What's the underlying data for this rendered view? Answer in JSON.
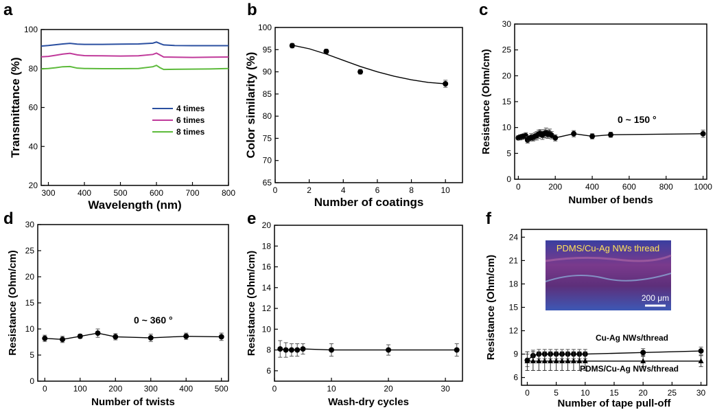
{
  "chart_data": [
    {
      "panel": "a",
      "type": "line",
      "xlabel": "Wavelength (nm)",
      "ylabel": "Transmittance (%)",
      "xlim": [
        280,
        800
      ],
      "ylim": [
        20,
        100
      ],
      "xticks": [
        300,
        400,
        500,
        600,
        700,
        800
      ],
      "yticks": [
        20,
        40,
        60,
        80,
        100
      ],
      "legend": "inside-lower-right",
      "series": [
        {
          "name": "4 times",
          "color": "#2a4fa0",
          "x": [
            280,
            300,
            320,
            340,
            360,
            380,
            400,
            450,
            500,
            550,
            590,
            600,
            610,
            620,
            650,
            700,
            750,
            800
          ],
          "values": [
            91.5,
            91.8,
            92.2,
            92.6,
            92.9,
            92.5,
            92.4,
            92.4,
            92.5,
            92.6,
            93.0,
            93.6,
            92.8,
            92.1,
            91.8,
            91.7,
            91.7,
            91.7
          ]
        },
        {
          "name": "6 times",
          "color": "#c0399a",
          "x": [
            280,
            300,
            320,
            340,
            360,
            380,
            400,
            450,
            500,
            550,
            590,
            600,
            610,
            620,
            650,
            700,
            750,
            800
          ],
          "values": [
            86.0,
            86.2,
            86.8,
            87.4,
            87.8,
            87.0,
            86.6,
            86.5,
            86.4,
            86.5,
            87.2,
            87.9,
            86.9,
            85.9,
            85.8,
            85.7,
            85.8,
            85.9
          ]
        },
        {
          "name": "8 times",
          "color": "#5cba3a",
          "x": [
            280,
            300,
            320,
            340,
            360,
            380,
            400,
            450,
            500,
            550,
            590,
            600,
            610,
            620,
            650,
            700,
            750,
            800
          ],
          "values": [
            79.8,
            80.0,
            80.4,
            80.9,
            81.0,
            80.2,
            80.0,
            79.9,
            79.9,
            80.0,
            80.9,
            81.6,
            80.4,
            79.5,
            79.6,
            79.7,
            79.8,
            80.0
          ]
        }
      ]
    },
    {
      "panel": "b",
      "type": "scatter",
      "xlabel": "Number of coatings",
      "ylabel": "Color similarity (%)",
      "xlim": [
        0,
        11
      ],
      "ylim": [
        65,
        100
      ],
      "xticks": [
        0,
        2,
        4,
        6,
        8,
        10
      ],
      "yticks": [
        65,
        70,
        75,
        80,
        85,
        90,
        95,
        100
      ],
      "series": [
        {
          "name": "",
          "x": [
            1,
            3,
            5,
            10
          ],
          "values": [
            95.9,
            94.6,
            90.0,
            87.3
          ],
          "errors": [
            0.5,
            0.5,
            0.5,
            0.8
          ],
          "fit_x": [
            1,
            2,
            3,
            4,
            5,
            6,
            7,
            8,
            9,
            10
          ],
          "fit_y": [
            96.0,
            95.2,
            94.0,
            92.6,
            91.2,
            90.0,
            89.0,
            88.2,
            87.6,
            87.3
          ]
        }
      ]
    },
    {
      "panel": "c",
      "type": "scatter",
      "xlabel": "Number of bends",
      "ylabel": "Resistance (Ohm/cm)",
      "xlim": [
        -20,
        1020
      ],
      "ylim": [
        0,
        30
      ],
      "xticks": [
        0,
        200,
        400,
        600,
        800,
        1000
      ],
      "yticks": [
        0,
        5,
        10,
        15,
        20,
        25,
        30
      ],
      "annotation": "0 ~ 150 °",
      "series": [
        {
          "name": "",
          "x": [
            0,
            10,
            20,
            30,
            40,
            50,
            60,
            70,
            80,
            90,
            100,
            110,
            120,
            130,
            140,
            150,
            160,
            170,
            180,
            200,
            300,
            400,
            500,
            1000
          ],
          "values": [
            8.0,
            8.1,
            8.2,
            8.3,
            8.4,
            7.6,
            7.9,
            8.1,
            8.0,
            8.3,
            8.4,
            8.7,
            8.9,
            8.5,
            8.8,
            9.0,
            8.7,
            8.9,
            8.5,
            8.0,
            8.8,
            8.3,
            8.6,
            8.8
          ],
          "errors": [
            0.4,
            0.5,
            0.5,
            0.5,
            0.6,
            0.6,
            0.5,
            0.7,
            0.6,
            0.7,
            0.8,
            0.8,
            0.7,
            0.8,
            0.8,
            0.9,
            0.8,
            0.8,
            0.7,
            0.6,
            0.6,
            0.5,
            0.5,
            0.7
          ]
        }
      ]
    },
    {
      "panel": "d",
      "type": "line",
      "xlabel": "Number of twists",
      "ylabel": "Resistance (Ohm/cm)",
      "xlim": [
        -20,
        520
      ],
      "ylim": [
        0,
        30
      ],
      "xticks": [
        0,
        100,
        200,
        300,
        400,
        500
      ],
      "yticks": [
        0,
        5,
        10,
        15,
        20,
        25,
        30
      ],
      "annotation": "0 ~  360 °",
      "series": [
        {
          "name": "",
          "x": [
            0,
            50,
            100,
            150,
            200,
            300,
            400,
            500
          ],
          "values": [
            8.2,
            8.0,
            8.6,
            9.2,
            8.5,
            8.3,
            8.6,
            8.5
          ],
          "errors": [
            0.6,
            0.6,
            0.4,
            0.8,
            0.6,
            0.7,
            0.6,
            0.7
          ]
        }
      ]
    },
    {
      "panel": "e",
      "type": "line",
      "xlabel": "Wash-dry cycles",
      "ylabel": "Resistance (Ohm/cm)",
      "xlim": [
        0,
        33
      ],
      "ylim": [
        5,
        20
      ],
      "xticks": [
        0,
        10,
        20,
        30
      ],
      "yticks": [
        6,
        8,
        10,
        12,
        14,
        16,
        18,
        20
      ],
      "series": [
        {
          "name": "",
          "x": [
            1,
            2,
            3,
            4,
            5,
            10,
            20,
            32
          ],
          "values": [
            8.1,
            8.0,
            8.0,
            8.0,
            8.1,
            8.0,
            8.0,
            8.0
          ],
          "errors": [
            0.8,
            0.7,
            0.6,
            0.6,
            0.5,
            0.6,
            0.5,
            0.6
          ]
        }
      ]
    },
    {
      "panel": "f",
      "type": "line",
      "xlabel": "Number of tape pull-off",
      "ylabel": "Resistance (Ohm/cm)",
      "xlim": [
        -1,
        31
      ],
      "ylim": [
        5,
        25
      ],
      "xticks": [
        0,
        5,
        10,
        15,
        20,
        25,
        30
      ],
      "yticks": [
        6,
        9,
        12,
        15,
        18,
        21,
        24
      ],
      "inset": {
        "label": "PDMS/Cu-Ag NWs thread",
        "scale_bar": "200 μm"
      },
      "series": [
        {
          "name": "Cu-Ag NWs/thread",
          "marker": "circle",
          "x": [
            0,
            1,
            2,
            3,
            4,
            5,
            6,
            7,
            8,
            9,
            10,
            20,
            30
          ],
          "values": [
            8.2,
            8.8,
            9.0,
            9.0,
            9.0,
            9.0,
            9.0,
            9.0,
            9.0,
            9.0,
            9.0,
            9.2,
            9.4
          ],
          "errors": [
            0.8,
            0.7,
            0.6,
            0.6,
            0.6,
            0.6,
            0.6,
            0.6,
            0.6,
            0.6,
            0.6,
            0.5,
            0.5
          ]
        },
        {
          "name": "PDMS/Cu-Ag NWs/thread",
          "marker": "triangle",
          "x": [
            0,
            1,
            2,
            3,
            4,
            5,
            6,
            7,
            8,
            9,
            10,
            20,
            30
          ],
          "values": [
            8.1,
            8.1,
            8.1,
            8.1,
            8.1,
            8.1,
            8.1,
            8.1,
            8.1,
            8.1,
            8.1,
            8.1,
            8.1
          ],
          "errors": [
            1.2,
            1.2,
            1.2,
            1.2,
            1.2,
            1.2,
            1.2,
            1.2,
            1.2,
            1.2,
            1.2,
            0.7,
            0.7
          ]
        }
      ]
    }
  ]
}
